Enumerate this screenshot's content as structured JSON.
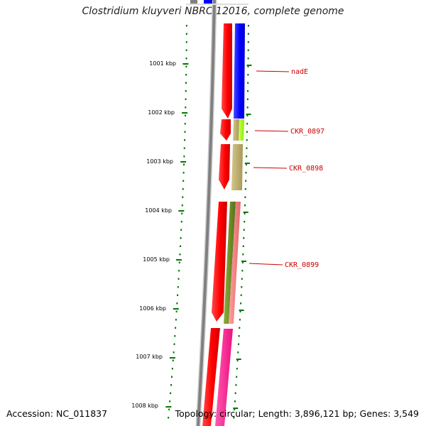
{
  "title": "Clostridium kluyveri NBRC 12016, complete genome",
  "accession_text": "Accession: NC_011837",
  "topology_text": "Topology: circular; Length: 3,896,121 bp; Genes: 3,549",
  "ticks": [
    {
      "label": "1001 kbp",
      "kbp": 1001
    },
    {
      "label": "1002 kbp",
      "kbp": 1002
    },
    {
      "label": "1003 kbp",
      "kbp": 1003
    },
    {
      "label": "1004 kbp",
      "kbp": 1004
    },
    {
      "label": "1005 kbp",
      "kbp": 1005
    },
    {
      "label": "1006 kbp",
      "kbp": 1006
    },
    {
      "label": "1007 kbp",
      "kbp": 1007
    },
    {
      "label": "1008 kbp",
      "kbp": 1008
    }
  ],
  "genes": [
    {
      "label": "nadE",
      "kbp": 1001.15
    },
    {
      "label": "CKR_0897",
      "kbp": 1002.38
    },
    {
      "label": "CKR_0898",
      "kbp": 1003.12
    },
    {
      "label": "CKR_0899",
      "kbp": 1005.08
    }
  ],
  "colors": {
    "cds": "#ff0000",
    "backbone": "#808080",
    "ticks": "#007700",
    "blue": "#0000ff",
    "khaki": "#b8a86a",
    "lime": "#99ff00",
    "olive": "#6b8e23",
    "salmon": "#f08080",
    "magenta": "#ff1493",
    "label": "#cc0000"
  }
}
